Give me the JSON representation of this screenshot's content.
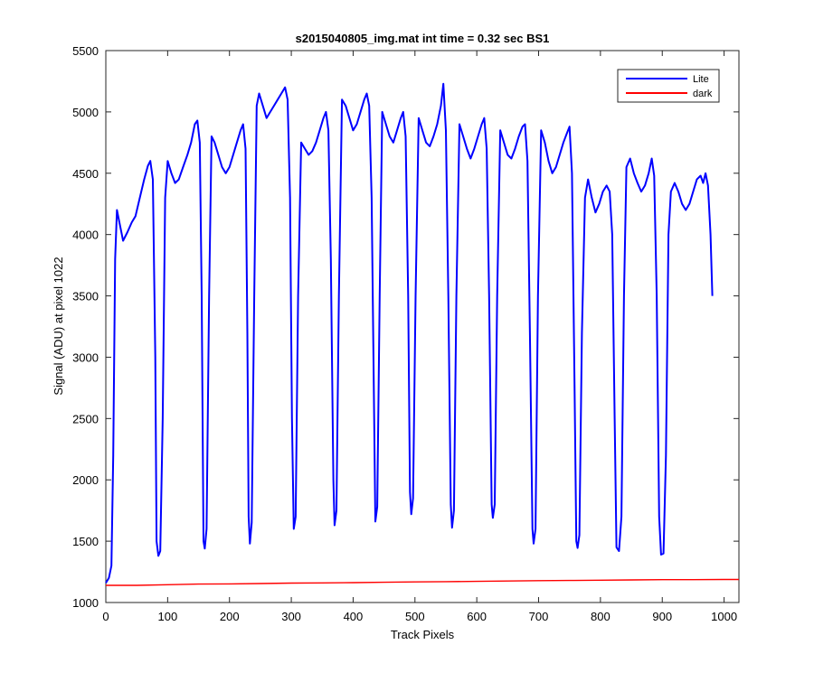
{
  "chart_data": {
    "type": "line",
    "title": "s2015040805_img.mat int time = 0.32 sec   BS1",
    "xlabel": "Track Pixels",
    "ylabel": "Signal (ADU) at pixel 1022",
    "xlim": [
      0,
      1024
    ],
    "ylim": [
      1000,
      5500
    ],
    "xticks": [
      0,
      100,
      200,
      300,
      400,
      500,
      600,
      700,
      800,
      900,
      1000
    ],
    "yticks": [
      1000,
      1500,
      2000,
      2500,
      3000,
      3500,
      4000,
      4500,
      5000,
      5500
    ],
    "grid": false,
    "legend_position": "top-right",
    "series": [
      {
        "name": "Lite",
        "color": "#0000ff",
        "points": [
          [
            0,
            1160
          ],
          [
            5,
            1200
          ],
          [
            9,
            1300
          ],
          [
            12,
            2200
          ],
          [
            15,
            3800
          ],
          [
            18,
            4200
          ],
          [
            22,
            4100
          ],
          [
            28,
            3950
          ],
          [
            35,
            4020
          ],
          [
            42,
            4100
          ],
          [
            48,
            4150
          ],
          [
            55,
            4300
          ],
          [
            62,
            4450
          ],
          [
            68,
            4560
          ],
          [
            72,
            4600
          ],
          [
            76,
            4450
          ],
          [
            80,
            3000
          ],
          [
            82,
            1500
          ],
          [
            85,
            1380
          ],
          [
            88,
            1420
          ],
          [
            92,
            2500
          ],
          [
            96,
            4300
          ],
          [
            100,
            4600
          ],
          [
            106,
            4500
          ],
          [
            112,
            4420
          ],
          [
            118,
            4450
          ],
          [
            125,
            4550
          ],
          [
            132,
            4650
          ],
          [
            138,
            4750
          ],
          [
            144,
            4900
          ],
          [
            148,
            4930
          ],
          [
            152,
            4750
          ],
          [
            155,
            3500
          ],
          [
            158,
            1500
          ],
          [
            160,
            1440
          ],
          [
            163,
            1600
          ],
          [
            167,
            3500
          ],
          [
            171,
            4800
          ],
          [
            176,
            4750
          ],
          [
            182,
            4650
          ],
          [
            188,
            4550
          ],
          [
            194,
            4500
          ],
          [
            200,
            4550
          ],
          [
            206,
            4650
          ],
          [
            212,
            4750
          ],
          [
            218,
            4850
          ],
          [
            222,
            4900
          ],
          [
            226,
            4700
          ],
          [
            229,
            3200
          ],
          [
            231,
            1700
          ],
          [
            233,
            1480
          ],
          [
            236,
            1650
          ],
          [
            240,
            3500
          ],
          [
            244,
            5050
          ],
          [
            248,
            5150
          ],
          [
            254,
            5050
          ],
          [
            260,
            4950
          ],
          [
            266,
            5000
          ],
          [
            272,
            5050
          ],
          [
            278,
            5100
          ],
          [
            284,
            5150
          ],
          [
            290,
            5200
          ],
          [
            294,
            5100
          ],
          [
            298,
            4300
          ],
          [
            301,
            2500
          ],
          [
            304,
            1600
          ],
          [
            307,
            1700
          ],
          [
            311,
            3500
          ],
          [
            316,
            4750
          ],
          [
            322,
            4700
          ],
          [
            328,
            4650
          ],
          [
            334,
            4680
          ],
          [
            340,
            4750
          ],
          [
            346,
            4850
          ],
          [
            352,
            4950
          ],
          [
            356,
            5000
          ],
          [
            360,
            4850
          ],
          [
            364,
            3800
          ],
          [
            368,
            2000
          ],
          [
            370,
            1630
          ],
          [
            373,
            1750
          ],
          [
            377,
            3500
          ],
          [
            382,
            5100
          ],
          [
            388,
            5050
          ],
          [
            394,
            4950
          ],
          [
            400,
            4850
          ],
          [
            406,
            4900
          ],
          [
            412,
            5000
          ],
          [
            418,
            5100
          ],
          [
            422,
            5150
          ],
          [
            426,
            5050
          ],
          [
            430,
            4300
          ],
          [
            434,
            2500
          ],
          [
            436,
            1660
          ],
          [
            439,
            1780
          ],
          [
            443,
            3500
          ],
          [
            447,
            5000
          ],
          [
            453,
            4900
          ],
          [
            459,
            4800
          ],
          [
            465,
            4750
          ],
          [
            471,
            4850
          ],
          [
            477,
            4950
          ],
          [
            481,
            5000
          ],
          [
            485,
            4800
          ],
          [
            489,
            3500
          ],
          [
            492,
            1900
          ],
          [
            494,
            1720
          ],
          [
            497,
            1850
          ],
          [
            501,
            3500
          ],
          [
            506,
            4950
          ],
          [
            512,
            4850
          ],
          [
            518,
            4750
          ],
          [
            524,
            4720
          ],
          [
            530,
            4800
          ],
          [
            536,
            4900
          ],
          [
            542,
            5050
          ],
          [
            546,
            5230
          ],
          [
            550,
            4850
          ],
          [
            554,
            3500
          ],
          [
            558,
            1800
          ],
          [
            560,
            1610
          ],
          [
            563,
            1750
          ],
          [
            567,
            3500
          ],
          [
            572,
            4900
          ],
          [
            578,
            4800
          ],
          [
            584,
            4700
          ],
          [
            590,
            4620
          ],
          [
            596,
            4700
          ],
          [
            602,
            4800
          ],
          [
            608,
            4900
          ],
          [
            612,
            4950
          ],
          [
            616,
            4700
          ],
          [
            620,
            3500
          ],
          [
            624,
            1800
          ],
          [
            626,
            1690
          ],
          [
            629,
            1800
          ],
          [
            633,
            3500
          ],
          [
            638,
            4850
          ],
          [
            644,
            4750
          ],
          [
            650,
            4650
          ],
          [
            656,
            4620
          ],
          [
            662,
            4700
          ],
          [
            668,
            4800
          ],
          [
            674,
            4880
          ],
          [
            678,
            4900
          ],
          [
            682,
            4600
          ],
          [
            686,
            3200
          ],
          [
            690,
            1600
          ],
          [
            692,
            1480
          ],
          [
            695,
            1600
          ],
          [
            699,
            3500
          ],
          [
            704,
            4850
          ],
          [
            710,
            4750
          ],
          [
            716,
            4600
          ],
          [
            722,
            4500
          ],
          [
            728,
            4550
          ],
          [
            734,
            4650
          ],
          [
            740,
            4750
          ],
          [
            746,
            4830
          ],
          [
            750,
            4880
          ],
          [
            754,
            4500
          ],
          [
            758,
            2800
          ],
          [
            761,
            1500
          ],
          [
            763,
            1445
          ],
          [
            766,
            1550
          ],
          [
            770,
            3200
          ],
          [
            775,
            4300
          ],
          [
            780,
            4450
          ],
          [
            786,
            4300
          ],
          [
            792,
            4180
          ],
          [
            798,
            4250
          ],
          [
            804,
            4350
          ],
          [
            810,
            4400
          ],
          [
            815,
            4350
          ],
          [
            819,
            4000
          ],
          [
            823,
            2500
          ],
          [
            826,
            1450
          ],
          [
            830,
            1420
          ],
          [
            834,
            1700
          ],
          [
            838,
            3500
          ],
          [
            842,
            4550
          ],
          [
            848,
            4620
          ],
          [
            854,
            4500
          ],
          [
            860,
            4420
          ],
          [
            866,
            4350
          ],
          [
            872,
            4400
          ],
          [
            878,
            4500
          ],
          [
            883,
            4620
          ],
          [
            887,
            4480
          ],
          [
            891,
            3500
          ],
          [
            895,
            1700
          ],
          [
            898,
            1390
          ],
          [
            902,
            1400
          ],
          [
            906,
            2200
          ],
          [
            910,
            4000
          ],
          [
            914,
            4350
          ],
          [
            920,
            4420
          ],
          [
            926,
            4350
          ],
          [
            932,
            4250
          ],
          [
            938,
            4200
          ],
          [
            944,
            4250
          ],
          [
            950,
            4350
          ],
          [
            956,
            4450
          ],
          [
            962,
            4480
          ],
          [
            966,
            4420
          ],
          [
            970,
            4500
          ],
          [
            974,
            4400
          ],
          [
            978,
            4000
          ],
          [
            981,
            3500
          ]
        ]
      },
      {
        "name": "dark",
        "color": "#ff0000",
        "points": [
          [
            0,
            1140
          ],
          [
            50,
            1140
          ],
          [
            100,
            1145
          ],
          [
            150,
            1150
          ],
          [
            200,
            1152
          ],
          [
            250,
            1155
          ],
          [
            300,
            1158
          ],
          [
            350,
            1160
          ],
          [
            400,
            1162
          ],
          [
            450,
            1165
          ],
          [
            500,
            1168
          ],
          [
            550,
            1170
          ],
          [
            600,
            1172
          ],
          [
            650,
            1175
          ],
          [
            700,
            1178
          ],
          [
            750,
            1180
          ],
          [
            800,
            1182
          ],
          [
            850,
            1184
          ],
          [
            900,
            1186
          ],
          [
            950,
            1186
          ],
          [
            1000,
            1188
          ],
          [
            1024,
            1188
          ]
        ]
      }
    ]
  }
}
